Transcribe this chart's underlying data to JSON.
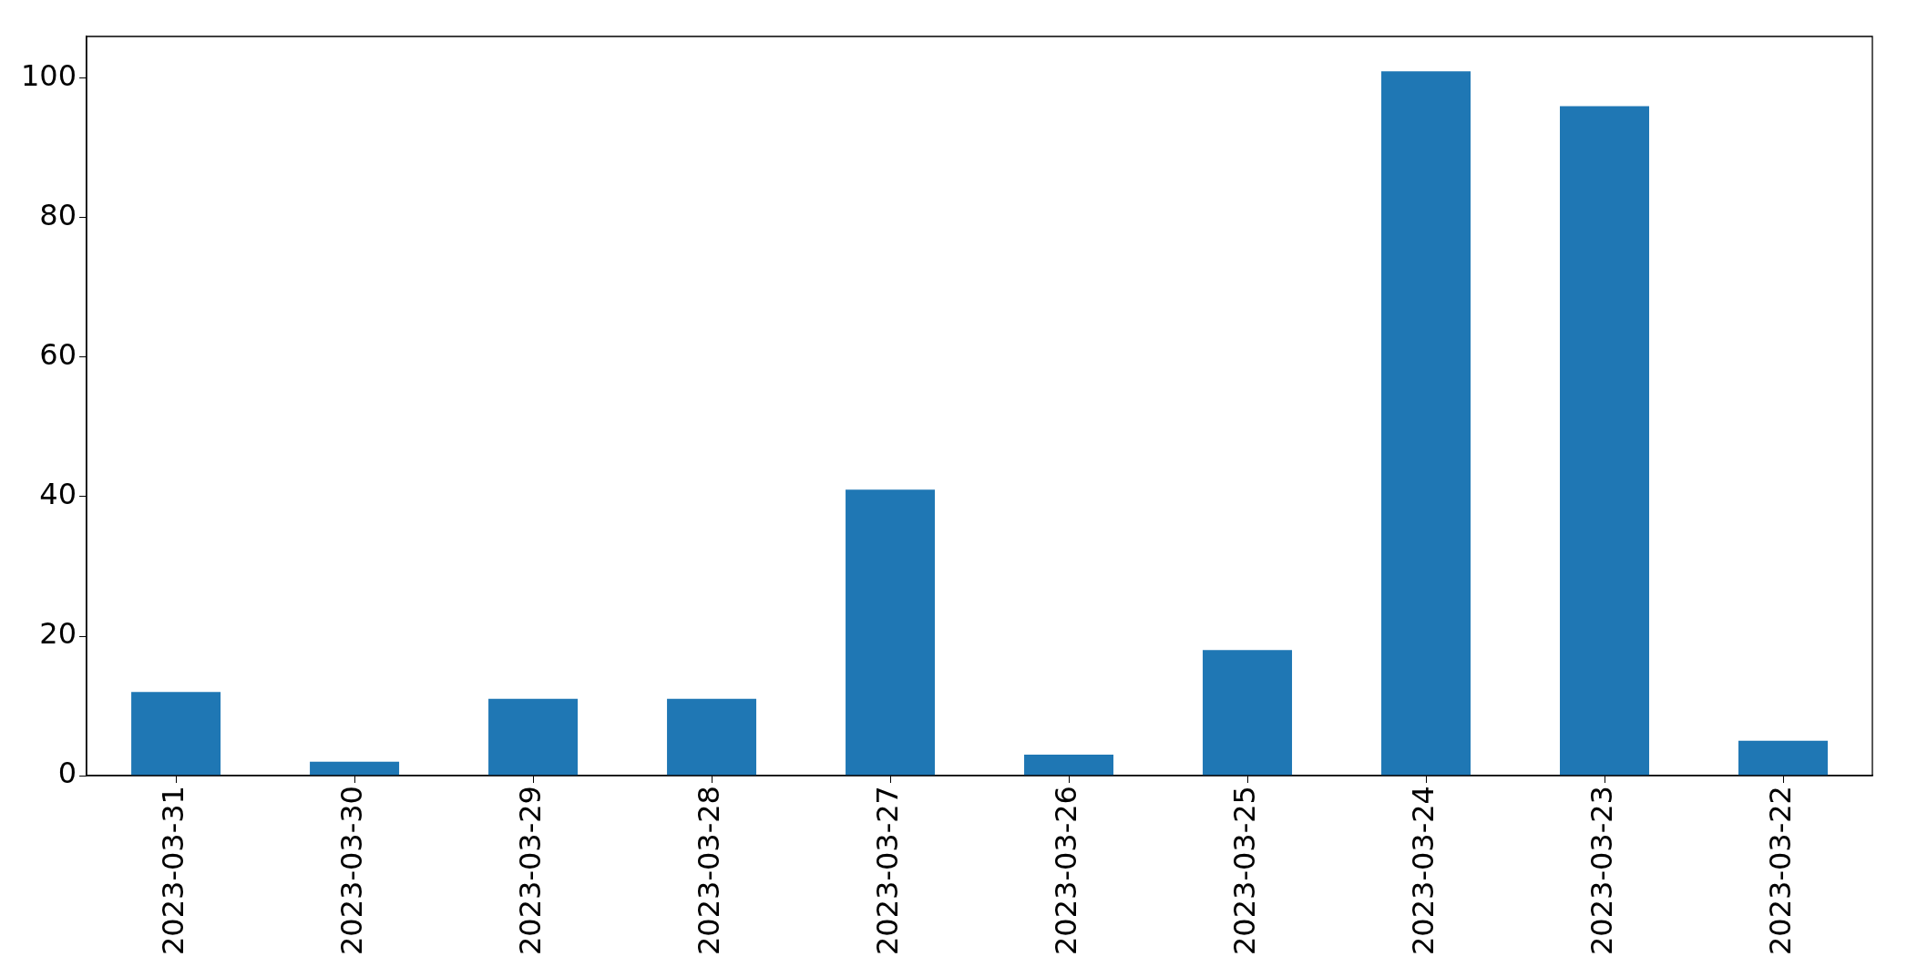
{
  "chart_data": {
    "type": "bar",
    "categories": [
      "2023-03-31",
      "2023-03-30",
      "2023-03-29",
      "2023-03-28",
      "2023-03-27",
      "2023-03-26",
      "2023-03-25",
      "2023-03-24",
      "2023-03-23",
      "2023-03-22"
    ],
    "values": [
      12,
      2,
      11,
      11,
      41,
      3,
      18,
      101,
      96,
      5
    ],
    "color": "#1f77b4",
    "ylim": [
      0,
      106
    ],
    "yticks": [
      0,
      20,
      40,
      60,
      80,
      100
    ],
    "grid": false,
    "legend": false
  }
}
